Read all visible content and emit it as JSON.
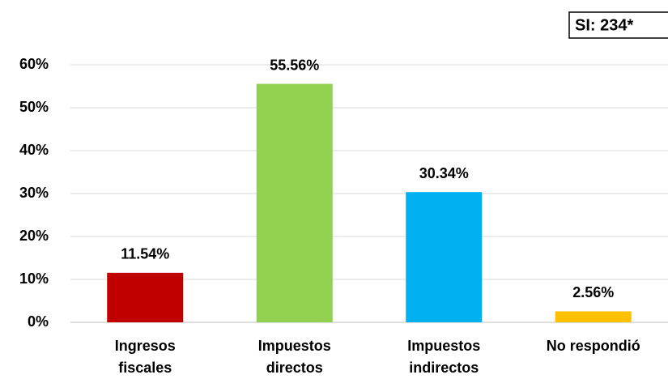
{
  "chart_data": {
    "type": "bar",
    "annotation": "SI: 234*",
    "categories": [
      [
        "Ingresos",
        "fiscales"
      ],
      [
        "Impuestos",
        "directos"
      ],
      [
        "Impuestos",
        "indirectos"
      ],
      [
        "No respondió"
      ]
    ],
    "values": [
      11.54,
      55.56,
      30.34,
      2.56
    ],
    "value_labels": [
      "11.54%",
      "55.56%",
      "30.34%",
      "2.56%"
    ],
    "colors": [
      "#c00000",
      "#92d050",
      "#00b0f0",
      "#ffc000"
    ],
    "ylim": [
      0,
      60
    ],
    "yticks": [
      {
        "value": 0,
        "label": "0%"
      },
      {
        "value": 10,
        "label": "10%"
      },
      {
        "value": 20,
        "label": "20%"
      },
      {
        "value": 30,
        "label": "30%"
      },
      {
        "value": 40,
        "label": "40%"
      },
      {
        "value": 50,
        "label": "50%"
      },
      {
        "value": 60,
        "label": "60%"
      }
    ],
    "grid": true
  }
}
